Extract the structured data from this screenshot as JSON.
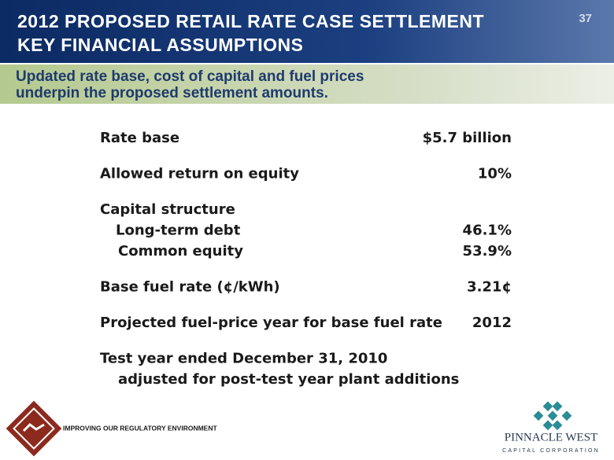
{
  "header": {
    "title_lines": [
      "2012 PROPOSED RETAIL RATE CASE SETTLEMENT",
      "KEY FINANCIAL ASSUMPTIONS"
    ],
    "page_number": "37"
  },
  "subtitle_lines": [
    "Updated rate base, cost of capital and fuel prices",
    "underpin the proposed settlement amounts."
  ],
  "table": {
    "groups": [
      [
        {
          "label": "Rate base",
          "value": "$5.7 billion"
        }
      ],
      [
        {
          "label": "Allowed return on equity",
          "value": "10%"
        }
      ],
      [
        {
          "label": "Capital structure"
        },
        {
          "label": "Long-term debt",
          "value": "46.1%",
          "indent": true
        },
        {
          "label": "Common equity",
          "value": "53.9%",
          "indent": true
        }
      ],
      [
        {
          "label": "Base fuel rate (¢/kWh)",
          "value": "3.21¢"
        }
      ],
      [
        {
          "label": "Projected fuel-price year for base fuel rate",
          "value": "2012"
        }
      ],
      [
        {
          "label": "Test year ended December 31, 2010"
        },
        {
          "label": "adjusted for post-test year plant additions",
          "indent": true
        }
      ]
    ]
  },
  "footer": {
    "section": "IMPROVING OUR REGULATORY ENVIRONMENT",
    "logo_name": "PINNACLE WEST",
    "logo_sub": "CAPITAL CORPORATION"
  }
}
